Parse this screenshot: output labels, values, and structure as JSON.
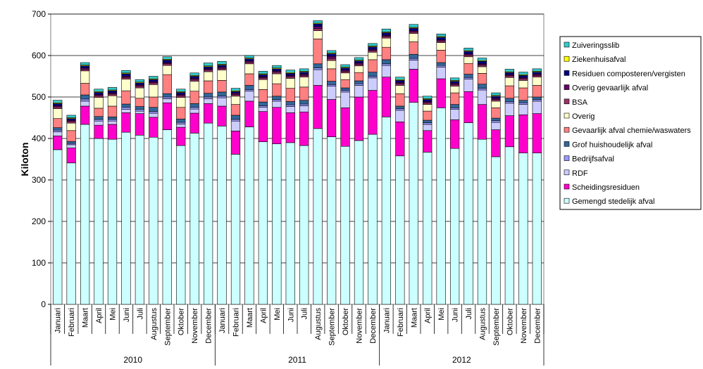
{
  "chart_data": {
    "type": "bar",
    "stacked": true,
    "ylabel": "Kiloton",
    "ylim": [
      0,
      700
    ],
    "yticks": [
      0,
      100,
      200,
      300,
      400,
      500,
      600,
      700
    ],
    "grid": true,
    "legend_position": "right",
    "years": [
      "2010",
      "2011",
      "2012"
    ],
    "categories": [
      "Januari",
      "Februari",
      "Maart",
      "April",
      "Mei",
      "Juni",
      "Juli",
      "Augustus",
      "September",
      "Oktober",
      "November",
      "December",
      "Januari",
      "Februari",
      "Maart",
      "April",
      "Mei",
      "Juni",
      "Juli",
      "Augustus",
      "September",
      "Oktober",
      "November",
      "December",
      "Januari",
      "Februari",
      "Maart",
      "April",
      "Mei",
      "Juni",
      "Juli",
      "Augustus",
      "September",
      "Oktober",
      "November",
      "December"
    ],
    "series": [
      {
        "name": "Gemengd stedelijk afval",
        "color": "#ccffff",
        "values": [
          373,
          341,
          434,
          400,
          398,
          415,
          408,
          403,
          421,
          383,
          413,
          437,
          430,
          362,
          428,
          392,
          387,
          390,
          383,
          424,
          404,
          381,
          395,
          410,
          452,
          358,
          487,
          367,
          474,
          376,
          438,
          398,
          356,
          380,
          365,
          365
        ]
      },
      {
        "name": "Scheidingsresiduen",
        "color": "#ff00cc",
        "values": [
          33,
          36,
          44,
          32,
          36,
          47,
          52,
          48,
          65,
          44,
          48,
          47,
          48,
          56,
          62,
          73,
          88,
          72,
          81,
          104,
          90,
          93,
          105,
          106,
          96,
          82,
          80,
          52,
          70,
          69,
          75,
          84,
          65,
          75,
          92,
          95
        ]
      },
      {
        "name": "RDF",
        "color": "#ccccff",
        "values": [
          10,
          8,
          12,
          10,
          8,
          8,
          6,
          10,
          10,
          8,
          10,
          12,
          20,
          24,
          24,
          10,
          15,
          15,
          15,
          38,
          32,
          38,
          28,
          30,
          28,
          28,
          22,
          15,
          28,
          25,
          30,
          35,
          18,
          30,
          25,
          30
        ]
      },
      {
        "name": "Bedrijfsafval",
        "color": "#9999ff",
        "values": [
          4,
          3,
          5,
          4,
          4,
          5,
          4,
          4,
          4,
          4,
          4,
          4,
          4,
          4,
          4,
          4,
          4,
          4,
          4,
          4,
          4,
          4,
          4,
          4,
          4,
          4,
          4,
          4,
          4,
          4,
          4,
          4,
          4,
          4,
          4,
          4
        ]
      },
      {
        "name": "Grof huishoudelijk afval",
        "color": "#336699",
        "values": [
          6,
          5,
          10,
          7,
          6,
          8,
          7,
          10,
          8,
          8,
          9,
          9,
          10,
          10,
          10,
          9,
          8,
          8,
          9,
          10,
          8,
          6,
          7,
          10,
          10,
          6,
          10,
          6,
          7,
          8,
          8,
          10,
          6,
          8,
          6,
          6
        ]
      },
      {
        "name": "Gevaarlijk afval chemie/waswaters",
        "color": "#ff8080",
        "values": [
          22,
          26,
          28,
          20,
          26,
          32,
          20,
          25,
          46,
          28,
          30,
          30,
          28,
          26,
          28,
          30,
          30,
          32,
          32,
          60,
          30,
          20,
          20,
          30,
          30,
          30,
          30,
          22,
          30,
          28,
          26,
          26,
          25,
          30,
          30,
          28
        ]
      },
      {
        "name": "Overig",
        "color": "#ffffcc",
        "values": [
          24,
          18,
          30,
          26,
          25,
          28,
          25,
          30,
          22,
          24,
          24,
          22,
          25,
          20,
          24,
          24,
          24,
          24,
          24,
          20,
          20,
          16,
          16,
          18,
          22,
          20,
          20,
          16,
          18,
          16,
          16,
          16,
          16,
          20,
          18,
          20
        ]
      },
      {
        "name": "BSA",
        "color": "#993366",
        "values": [
          4,
          4,
          4,
          4,
          4,
          4,
          4,
          4,
          4,
          4,
          4,
          4,
          4,
          4,
          4,
          4,
          4,
          4,
          4,
          5,
          5,
          4,
          4,
          4,
          4,
          4,
          4,
          4,
          4,
          4,
          4,
          4,
          4,
          4,
          4,
          4
        ]
      },
      {
        "name": "Overig gevaarlijk afval",
        "color": "#660066",
        "values": [
          3,
          3,
          3,
          3,
          3,
          3,
          3,
          3,
          3,
          3,
          3,
          3,
          3,
          3,
          3,
          3,
          3,
          3,
          3,
          5,
          5,
          3,
          3,
          3,
          3,
          3,
          3,
          3,
          3,
          3,
          3,
          3,
          3,
          3,
          3,
          3
        ]
      },
      {
        "name": "Residuen composteren/vergisten",
        "color": "#000080",
        "values": [
          5,
          4,
          5,
          5,
          5,
          6,
          5,
          5,
          6,
          5,
          5,
          5,
          5,
          4,
          5,
          5,
          5,
          5,
          5,
          6,
          6,
          5,
          5,
          6,
          6,
          5,
          6,
          5,
          6,
          5,
          6,
          6,
          5,
          5,
          5,
          5
        ]
      },
      {
        "name": "Ziekenhuisafval",
        "color": "#ffff00",
        "values": [
          2,
          2,
          2,
          2,
          2,
          2,
          2,
          2,
          2,
          2,
          2,
          2,
          2,
          2,
          2,
          2,
          2,
          2,
          2,
          2,
          2,
          2,
          2,
          2,
          2,
          2,
          2,
          2,
          2,
          2,
          2,
          2,
          2,
          2,
          2,
          2
        ]
      },
      {
        "name": "Zuiveringsslib",
        "color": "#33cccc",
        "values": [
          6,
          6,
          6,
          6,
          6,
          6,
          6,
          6,
          6,
          6,
          6,
          7,
          7,
          6,
          6,
          6,
          6,
          6,
          6,
          6,
          6,
          6,
          6,
          6,
          7,
          6,
          7,
          6,
          6,
          6,
          6,
          6,
          6,
          6,
          6,
          6
        ]
      }
    ]
  }
}
